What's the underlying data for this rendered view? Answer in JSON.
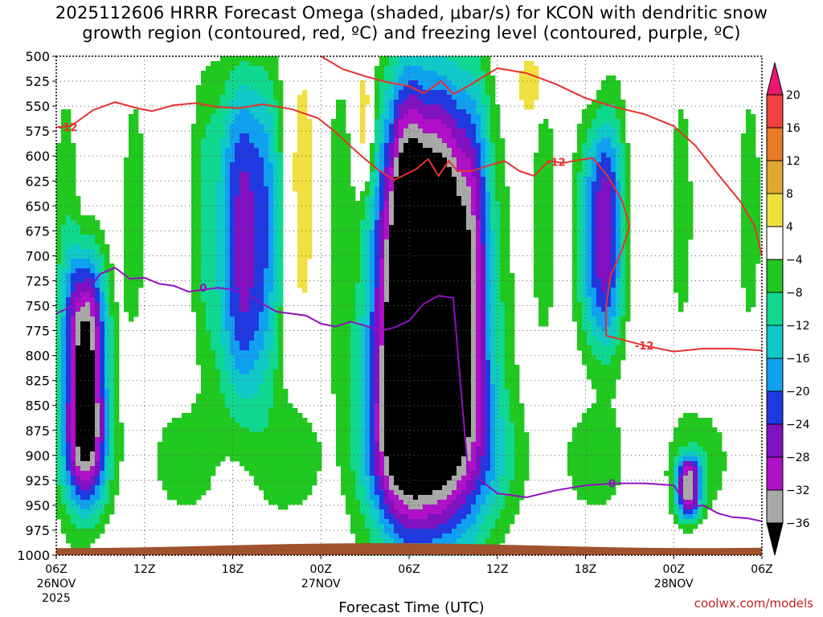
{
  "chart_data": {
    "type": "heatmap",
    "title_line1": "2025112606 HRRR Forecast Omega (shaded, μbar/s) for KCON with dendritic snow",
    "title_line2": "growth region (contoured, red, ºC) and freezing level (contoured, purple, ºC)",
    "xlabel": "Forecast Time (UTC)",
    "ylabel": "",
    "credit": "coolwx.com/models",
    "ylim": [
      500,
      1000
    ],
    "y_ticks": [
      500,
      525,
      550,
      575,
      600,
      625,
      650,
      675,
      700,
      725,
      750,
      775,
      800,
      825,
      850,
      875,
      900,
      925,
      950,
      975,
      1000
    ],
    "x_range_hours": [
      0,
      48
    ],
    "x_ticks": [
      {
        "hour": 0,
        "label": "06Z",
        "date": "26NOV",
        "year": "2025"
      },
      {
        "hour": 6,
        "label": "12Z",
        "date": "",
        "year": ""
      },
      {
        "hour": 12,
        "label": "18Z",
        "date": "",
        "year": ""
      },
      {
        "hour": 18,
        "label": "00Z",
        "date": "27NOV",
        "year": ""
      },
      {
        "hour": 24,
        "label": "06Z",
        "date": "",
        "year": ""
      },
      {
        "hour": 30,
        "label": "12Z",
        "date": "",
        "year": ""
      },
      {
        "hour": 36,
        "label": "18Z",
        "date": "",
        "year": ""
      },
      {
        "hour": 42,
        "label": "00Z",
        "date": "28NOV",
        "year": ""
      },
      {
        "hour": 48,
        "label": "06Z",
        "date": "",
        "year": ""
      }
    ],
    "colorbar": {
      "labels": [
        "20",
        "16",
        "12",
        "8",
        "4",
        "−4",
        "−8",
        "−12",
        "−16",
        "−20",
        "−24",
        "−28",
        "−32",
        "−36"
      ],
      "bins": [
        {
          "lo": 20,
          "hi": 24,
          "color": "#e8186c"
        },
        {
          "lo": 16,
          "hi": 20,
          "color": "#f04040"
        },
        {
          "lo": 12,
          "hi": 16,
          "color": "#e87a28"
        },
        {
          "lo": 8,
          "hi": 12,
          "color": "#e0a830"
        },
        {
          "lo": 4,
          "hi": 8,
          "color": "#f0e040"
        },
        {
          "lo": -4,
          "hi": 4,
          "color": "#ffffff"
        },
        {
          "lo": -8,
          "hi": -4,
          "color": "#20c820"
        },
        {
          "lo": -12,
          "hi": -8,
          "color": "#10d890"
        },
        {
          "lo": -16,
          "hi": -12,
          "color": "#10c8c8"
        },
        {
          "lo": -20,
          "hi": -16,
          "color": "#10a0f0"
        },
        {
          "lo": -24,
          "hi": -20,
          "color": "#2038e0"
        },
        {
          "lo": -28,
          "hi": -24,
          "color": "#8010c0"
        },
        {
          "lo": -32,
          "hi": -28,
          "color": "#b010c8"
        },
        {
          "lo": -36,
          "hi": -32,
          "color": "#a8a8a8"
        },
        {
          "lo": -40,
          "hi": -36,
          "color": "#000000"
        }
      ]
    },
    "omega_features": [
      {
        "name": "strong-ascent-26nov-08z",
        "hour": 2.0,
        "p_top": 695,
        "p_bottom": 950,
        "width_h": 1.6,
        "min": -40
      },
      {
        "name": "strong-ascent-27nov-08z",
        "hour": 26.5,
        "p_top": 515,
        "p_bottom": 975,
        "width_h": 3.0,
        "min": -40
      },
      {
        "name": "ascent-27nov-05z",
        "hour": 23.5,
        "p_top": 520,
        "p_bottom": 975,
        "width_h": 2.4,
        "min": -30
      },
      {
        "name": "ascent-26nov-19z",
        "hour": 12.8,
        "p_top": 510,
        "p_bottom": 860,
        "width_h": 2.2,
        "min": -26
      },
      {
        "name": "ascent-27nov-18z",
        "hour": 37.0,
        "p_top": 560,
        "p_bottom": 800,
        "width_h": 1.6,
        "min": -24
      },
      {
        "name": "ascent-28nov-01z",
        "hour": 43.0,
        "p_top": 900,
        "p_bottom": 965,
        "width_h": 0.9,
        "min": -30
      },
      {
        "name": "sinking-26nov-23z",
        "hour": 16.7,
        "p_top": 500,
        "p_bottom": 780,
        "width_h": 1.0,
        "min": 7
      },
      {
        "name": "sinking-27nov-03z",
        "hour": 21.0,
        "p_top": 500,
        "p_bottom": 640,
        "width_h": 0.8,
        "min": 10
      },
      {
        "name": "sinking-27nov-14z",
        "hour": 32.3,
        "p_top": 500,
        "p_bottom": 560,
        "width_h": 0.9,
        "min": 9
      }
    ],
    "series": [
      {
        "name": "-12 ºC isotherm (upper)",
        "color": "#e83030",
        "label": "-12",
        "hours": [
          0.0,
          1.0,
          2.5,
          4.0,
          5.5,
          6.5,
          8.0,
          9.5,
          11.0,
          12.5,
          14.0,
          16.0,
          17.8
        ],
        "p": [
          571,
          570,
          554,
          546,
          552,
          555,
          549,
          547,
          551,
          552,
          548,
          553,
          562
        ]
      },
      {
        "name": "-12 ºC isotherm (descending)",
        "color": "#e83030",
        "label": "",
        "hours": [
          17.8,
          19.0,
          20.0,
          21.0,
          22.0,
          23.0,
          24.5,
          25.3,
          26.0,
          26.7,
          27.3,
          28.3,
          29.5,
          30.5,
          31.5,
          32.5,
          33.5,
          34.5,
          35.5,
          36.5,
          37.5,
          38.5,
          39.0,
          38.5,
          37.7,
          37.4,
          37.4,
          38.5,
          40.0,
          42.0,
          44.0,
          46.0,
          48.0
        ],
        "p": [
          562,
          576,
          590,
          603,
          615,
          624,
          613,
          603,
          620,
          605,
          615,
          615,
          609,
          605,
          615,
          620,
          605,
          607,
          604,
          602,
          620,
          645,
          670,
          694,
          720,
          750,
          780,
          784,
          790,
          796,
          793,
          793,
          795
        ]
      },
      {
        "name": "-12 ºC isotherm (right)",
        "color": "#e83030",
        "label": "",
        "hours": [
          18.0,
          19.5,
          21.0,
          22.5,
          24.0,
          25.0,
          26.2,
          27.0,
          28.0,
          30.0,
          32.0,
          34.0,
          36.0,
          38.0,
          40.0,
          42.0,
          43.5,
          45.0,
          46.5,
          47.5,
          48.0
        ],
        "p": [
          500,
          513,
          520,
          526,
          530,
          537,
          525,
          538,
          530,
          512,
          517,
          528,
          542,
          551,
          558,
          570,
          590,
          618,
          645,
          670,
          700
        ]
      },
      {
        "name": "0 ºC freezing level",
        "color": "#9010c0",
        "label": "0",
        "hours": [
          0.0,
          1.0,
          2.0,
          3.0,
          4.0,
          5.0,
          6.0,
          7.0,
          8.0,
          9.0,
          10.0,
          11.0,
          12.0,
          13.0,
          14.0,
          15.0,
          16.0,
          17.0,
          18.0,
          19.0,
          20.0,
          21.0,
          22.0,
          23.0,
          24.0,
          25.0,
          26.0,
          27.0,
          28.0,
          30.0,
          32.0,
          34.0,
          36.0,
          38.0,
          40.0,
          42.0,
          43.0,
          44.0,
          45.0,
          46.0,
          47.0,
          48.0
        ],
        "p": [
          758,
          751,
          737,
          718,
          712,
          723,
          722,
          728,
          730,
          736,
          734,
          732,
          734,
          738,
          748,
          756,
          758,
          760,
          768,
          771,
          766,
          770,
          775,
          772,
          765,
          748,
          740,
          742,
          915,
          938,
          942,
          935,
          930,
          928,
          928,
          930,
          952,
          950,
          958,
          962,
          963,
          966
        ]
      }
    ],
    "terrain": {
      "color": "#a0522d",
      "p_top_range": [
        988,
        993
      ]
    }
  }
}
